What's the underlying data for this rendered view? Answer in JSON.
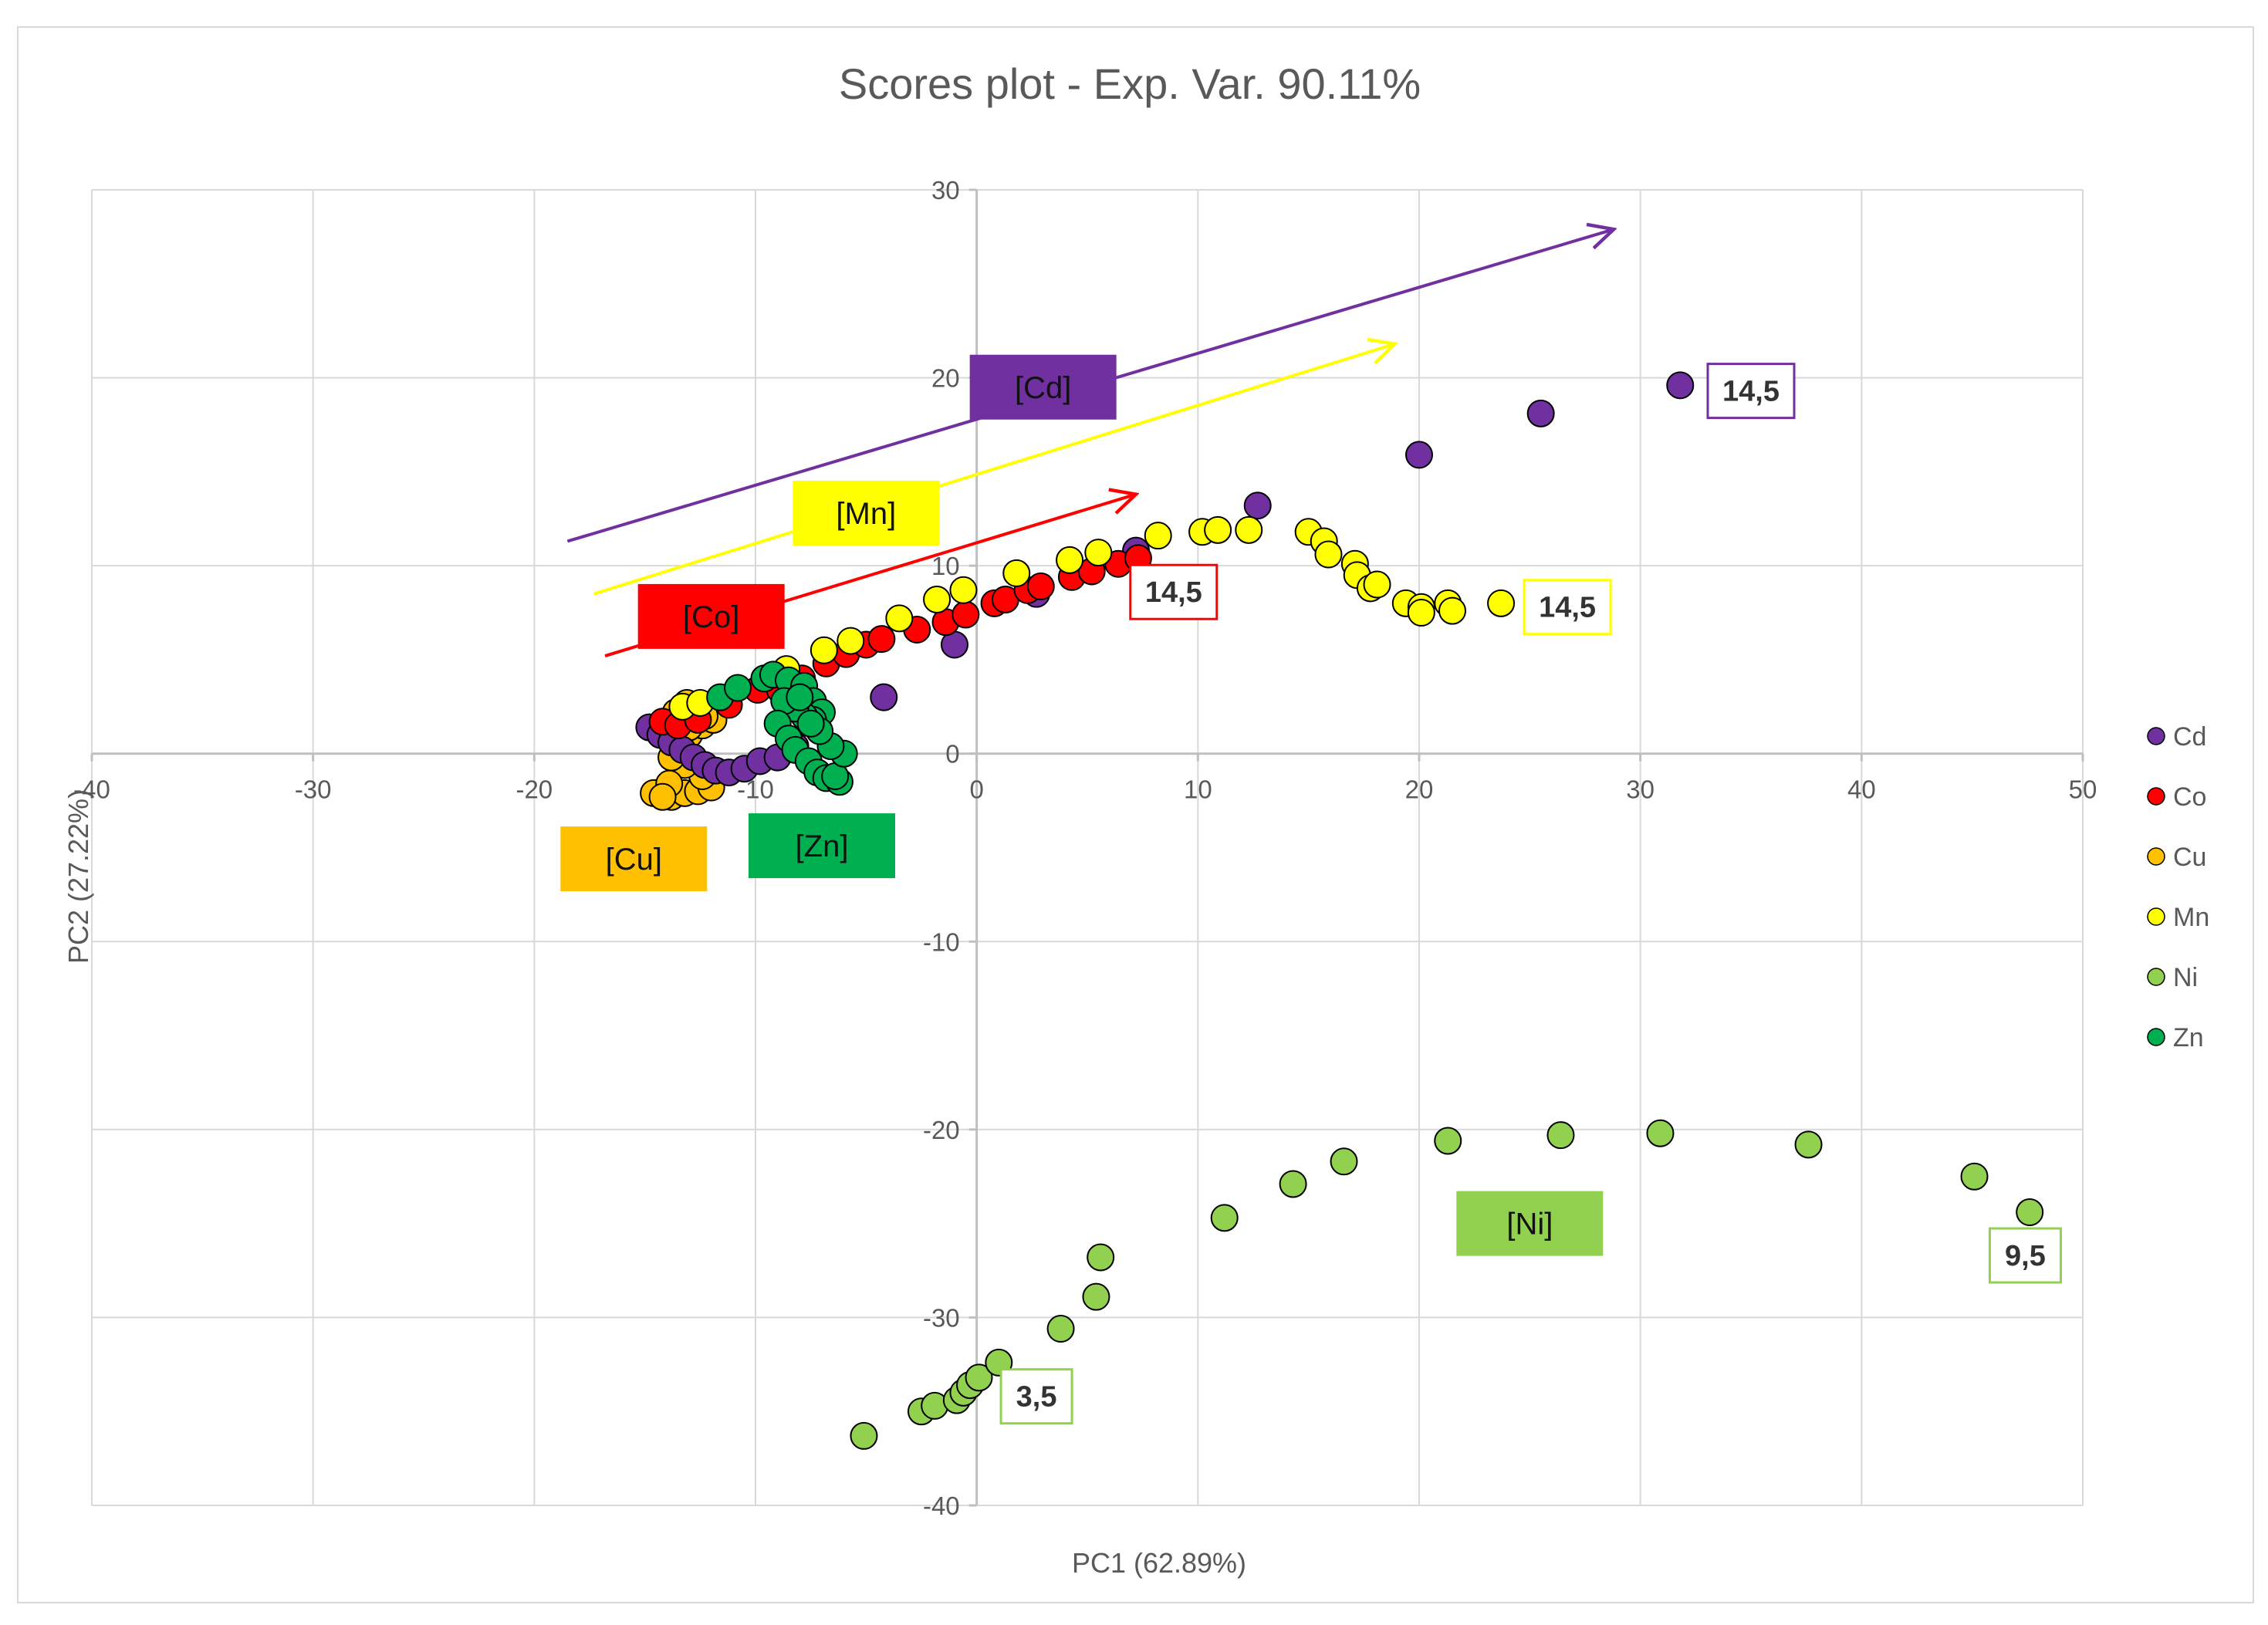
{
  "colors": {
    "Cd": "#7030a0",
    "Co": "#ff0000",
    "Cu": "#ffc000",
    "Mn": "#ffff00",
    "Ni": "#92d050",
    "Zn": "#00b050",
    "grid": "#d9d9d9",
    "axis": "#bfbfbf"
  },
  "chart_data": {
    "type": "scatter",
    "title": "Scores plot - Exp. Var. 90.11%",
    "xlabel": "PC1 (62.89%)",
    "ylabel": "PC2 (27.22%)",
    "xlim": [
      -40,
      50
    ],
    "ylim": [
      -40,
      30
    ],
    "xticks": [
      -40,
      -30,
      -20,
      -10,
      0,
      10,
      20,
      30,
      40,
      50
    ],
    "yticks": [
      -40,
      -30,
      -20,
      -10,
      0,
      10,
      20,
      30
    ],
    "xtick_labels": [
      "-40",
      "-30",
      "-20",
      "-10",
      "0",
      "10",
      "20",
      "30",
      "40",
      "50"
    ],
    "ytick_labels": [
      "-40",
      "-30",
      "-20",
      "-10",
      "0",
      "10",
      "20",
      "30"
    ],
    "grid": true,
    "legend_position": "right",
    "series": [
      {
        "name": "Cd",
        "points": [
          [
            -14.8,
            1.4
          ],
          [
            -14.3,
            1.0
          ],
          [
            -13.8,
            0.6
          ],
          [
            -13.3,
            0.2
          ],
          [
            -12.8,
            -0.2
          ],
          [
            -12.3,
            -0.6
          ],
          [
            -11.8,
            -0.9
          ],
          [
            -11.2,
            -1.0
          ],
          [
            -10.5,
            -0.8
          ],
          [
            -9.8,
            -0.4
          ],
          [
            -9.0,
            -0.2
          ],
          [
            -8.2,
            0.4
          ],
          [
            -4.2,
            3.0
          ],
          [
            -1.0,
            5.8
          ],
          [
            2.7,
            8.5
          ],
          [
            7.2,
            10.8
          ],
          [
            12.7,
            13.2
          ],
          [
            20.0,
            15.9
          ],
          [
            25.5,
            18.1
          ],
          [
            31.8,
            19.6
          ]
        ]
      },
      {
        "name": "Co",
        "points": [
          [
            -14.2,
            1.7
          ],
          [
            -13.5,
            1.5
          ],
          [
            -12.6,
            1.8
          ],
          [
            -11.2,
            2.6
          ],
          [
            -9.9,
            3.4
          ],
          [
            -8.9,
            3.4
          ],
          [
            -7.9,
            4.0
          ],
          [
            -6.8,
            4.8
          ],
          [
            -5.9,
            5.3
          ],
          [
            -5.0,
            5.8
          ],
          [
            -4.3,
            6.1
          ],
          [
            -2.7,
            6.6
          ],
          [
            -1.4,
            7.0
          ],
          [
            -0.5,
            7.4
          ],
          [
            0.8,
            8.0
          ],
          [
            1.3,
            8.2
          ],
          [
            2.3,
            8.7
          ],
          [
            2.9,
            8.9
          ],
          [
            4.3,
            9.4
          ],
          [
            5.2,
            9.7
          ],
          [
            6.4,
            10.1
          ],
          [
            7.3,
            10.4
          ]
        ]
      },
      {
        "name": "Cu",
        "points": [
          [
            -14.6,
            -2.1
          ],
          [
            -13.8,
            -2.3
          ],
          [
            -13.2,
            -2.1
          ],
          [
            -12.6,
            -2.0
          ],
          [
            -12.0,
            -1.8
          ],
          [
            -12.4,
            -1.2
          ],
          [
            -13.2,
            -0.6
          ],
          [
            -13.8,
            -0.2
          ],
          [
            -13.4,
            0.5
          ],
          [
            -13.0,
            1.0
          ],
          [
            -12.4,
            1.5
          ],
          [
            -11.9,
            1.8
          ],
          [
            -13.0,
            1.4
          ],
          [
            -13.6,
            2.2
          ],
          [
            -13.1,
            2.7
          ],
          [
            -12.3,
            2.0
          ],
          [
            -13.9,
            -1.6
          ],
          [
            -14.2,
            -2.3
          ]
        ]
      },
      {
        "name": "Mn",
        "points": [
          [
            -13.3,
            2.5
          ],
          [
            -12.5,
            2.7
          ],
          [
            -8.6,
            4.5
          ],
          [
            -6.9,
            5.5
          ],
          [
            -5.7,
            6.0
          ],
          [
            -3.5,
            7.2
          ],
          [
            -1.8,
            8.2
          ],
          [
            -0.6,
            8.7
          ],
          [
            1.8,
            9.6
          ],
          [
            4.2,
            10.3
          ],
          [
            5.5,
            10.7
          ],
          [
            8.2,
            11.6
          ],
          [
            10.2,
            11.8
          ],
          [
            10.9,
            11.9
          ],
          [
            12.3,
            11.9
          ],
          [
            15.0,
            11.8
          ],
          [
            15.7,
            11.3
          ],
          [
            15.9,
            10.6
          ],
          [
            17.1,
            10.1
          ],
          [
            17.2,
            9.5
          ],
          [
            17.8,
            8.8
          ],
          [
            18.1,
            9.0
          ],
          [
            19.4,
            8.0
          ],
          [
            20.1,
            7.8
          ],
          [
            20.1,
            7.5
          ],
          [
            21.3,
            8.0
          ],
          [
            21.5,
            7.6
          ],
          [
            23.7,
            8.0
          ]
        ]
      },
      {
        "name": "Ni",
        "points": [
          [
            -5.1,
            -36.3
          ],
          [
            -2.5,
            -35.0
          ],
          [
            -1.9,
            -34.7
          ],
          [
            -0.9,
            -34.4
          ],
          [
            -0.6,
            -34.0
          ],
          [
            -0.3,
            -33.6
          ],
          [
            0.1,
            -33.2
          ],
          [
            1.0,
            -32.4
          ],
          [
            3.8,
            -30.6
          ],
          [
            5.4,
            -28.9
          ],
          [
            5.6,
            -26.8
          ],
          [
            11.2,
            -24.7
          ],
          [
            14.3,
            -22.9
          ],
          [
            16.6,
            -21.7
          ],
          [
            21.3,
            -20.6
          ],
          [
            26.4,
            -20.3
          ],
          [
            30.9,
            -20.2
          ],
          [
            37.6,
            -20.8
          ],
          [
            45.1,
            -22.5
          ],
          [
            47.6,
            -24.4
          ]
        ]
      },
      {
        "name": "Zn",
        "points": [
          [
            -11.6,
            3.0
          ],
          [
            -10.8,
            3.5
          ],
          [
            -9.6,
            4.0
          ],
          [
            -9.2,
            4.2
          ],
          [
            -8.5,
            3.9
          ],
          [
            -7.8,
            3.6
          ],
          [
            -7.4,
            2.8
          ],
          [
            -7.0,
            2.2
          ],
          [
            -7.4,
            1.8
          ],
          [
            -7.8,
            2.0
          ],
          [
            -8.2,
            2.4
          ],
          [
            -8.7,
            2.8
          ],
          [
            -9.0,
            1.6
          ],
          [
            -8.5,
            0.8
          ],
          [
            -8.2,
            0.2
          ],
          [
            -7.6,
            -0.4
          ],
          [
            -7.2,
            -1.0
          ],
          [
            -6.8,
            -1.3
          ],
          [
            -6.2,
            -1.5
          ],
          [
            -6.4,
            -1.2
          ],
          [
            -6.0,
            0.0
          ],
          [
            -6.6,
            0.4
          ],
          [
            -7.1,
            1.2
          ],
          [
            -7.5,
            1.6
          ],
          [
            -8.0,
            3.0
          ]
        ]
      }
    ],
    "concentration_arrows": [
      {
        "name": "Cd",
        "from": [
          -18.5,
          11.3
        ],
        "to": [
          28.8,
          27.9
        ]
      },
      {
        "name": "Mn",
        "from": [
          -17.3,
          8.5
        ],
        "to": [
          18.9,
          21.8
        ]
      },
      {
        "name": "Co",
        "from": [
          -16.8,
          5.2
        ],
        "to": [
          7.2,
          13.8
        ]
      }
    ],
    "annotations": [
      {
        "series": "Cd",
        "text": "[Cd]",
        "at": [
          3.0,
          19.5
        ]
      },
      {
        "series": "Mn",
        "text": "[Mn]",
        "at": [
          -5.0,
          12.8
        ]
      },
      {
        "series": "Co",
        "text": "[Co]",
        "at": [
          -12.0,
          7.3
        ]
      },
      {
        "series": "Cu",
        "text": "[Cu]",
        "at": [
          -15.5,
          -5.6
        ]
      },
      {
        "series": "Zn",
        "text": "[Zn]",
        "at": [
          -7.0,
          -4.9
        ]
      },
      {
        "series": "Ni",
        "text": "[Ni]",
        "at": [
          25.0,
          -25.0
        ]
      }
    ],
    "end_labels": [
      {
        "series": "Cd",
        "text": "14,5",
        "at": [
          35.0,
          19.3
        ]
      },
      {
        "series": "Co",
        "text": "14,5",
        "at": [
          8.9,
          8.6
        ]
      },
      {
        "series": "Mn",
        "text": "14,5",
        "at": [
          26.7,
          7.8
        ]
      },
      {
        "series": "Ni",
        "text": "3,5",
        "at": [
          2.7,
          -34.2
        ]
      },
      {
        "series": "Ni",
        "text": "9,5",
        "at": [
          47.4,
          -26.7
        ]
      }
    ]
  }
}
